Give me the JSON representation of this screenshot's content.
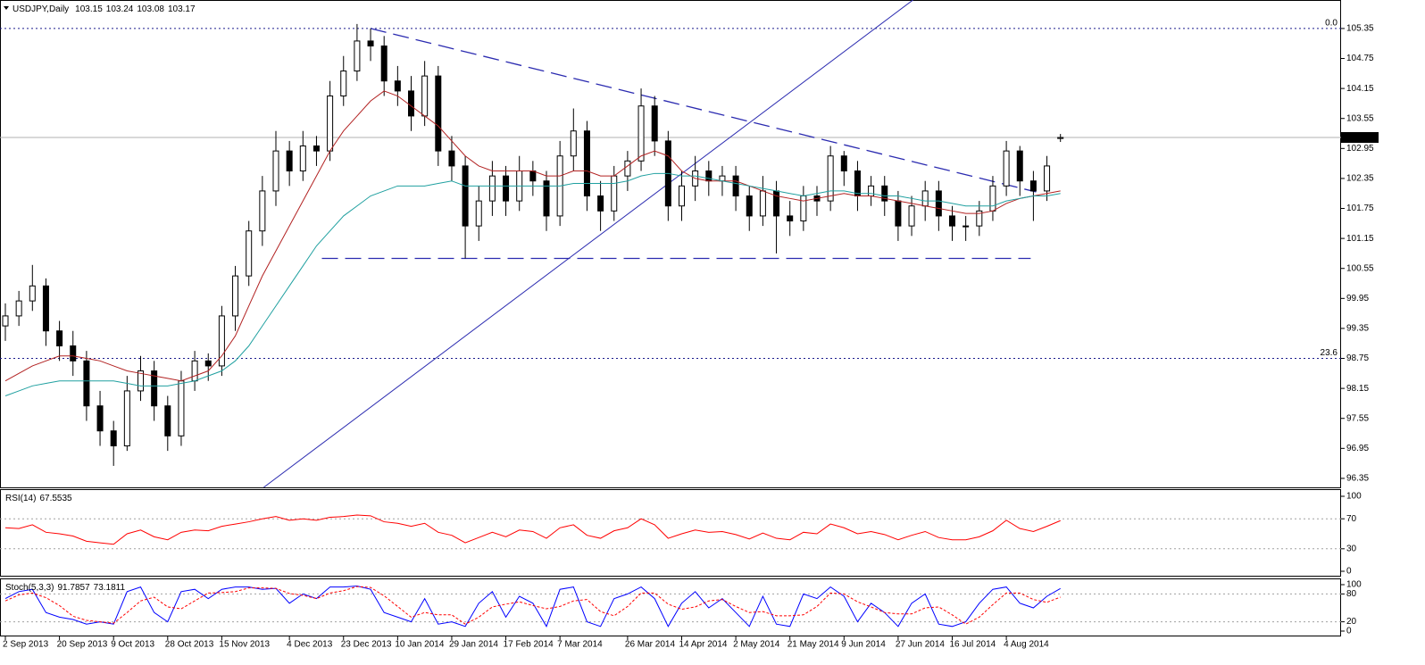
{
  "chart_data": [
    {
      "type": "candlestick",
      "title": "USDJPY,Daily",
      "categories": [
        "2 Sep 2013",
        null,
        null,
        null,
        "20 Sep 2013",
        null,
        null,
        null,
        "9 Oct 2013",
        null,
        null,
        null,
        "28 Oct 2013",
        null,
        null,
        null,
        "15 Nov 2013",
        null,
        null,
        null,
        null,
        "4 Dec 2013",
        null,
        null,
        null,
        "23 Dec 2013",
        null,
        null,
        null,
        "10 Jan 2014",
        null,
        null,
        null,
        "29 Jan 2014",
        null,
        null,
        null,
        "17 Feb 2014",
        null,
        null,
        null,
        "7 Mar 2014",
        null,
        null,
        null,
        null,
        "26 Mar 2014",
        null,
        null,
        null,
        "14 Apr 2014",
        null,
        null,
        null,
        "2 May 2014",
        null,
        null,
        null,
        "21 May 2014",
        null,
        null,
        null,
        "9 Jun 2014",
        null,
        null,
        null,
        "27 Jun 2014",
        null,
        null,
        null,
        "16 Jul 2014",
        null,
        null,
        null,
        "4 Aug 2014",
        null,
        null,
        null,
        null
      ],
      "open": [
        99.4,
        99.6,
        99.9,
        100.2,
        99.3,
        99.0,
        98.7,
        97.8,
        97.3,
        97.0,
        98.1,
        98.5,
        97.8,
        97.2,
        98.3,
        98.7,
        98.6,
        99.6,
        100.4,
        101.3,
        102.1,
        102.9,
        102.5,
        103.0,
        102.9,
        104.0,
        104.5,
        105.1,
        105.0,
        104.3,
        104.1,
        103.6,
        104.4,
        102.9,
        102.6,
        101.4,
        101.9,
        102.4,
        101.9,
        102.5,
        102.3,
        101.6,
        102.8,
        103.3,
        102.0,
        101.7,
        102.4,
        102.7,
        103.8,
        103.1,
        101.8,
        102.2,
        102.5,
        102.3,
        102.4,
        102.0,
        101.6,
        102.1,
        101.6,
        101.5,
        102.0,
        101.9,
        102.8,
        102.5,
        102.0,
        102.2,
        101.9,
        101.4,
        101.8,
        102.1,
        101.6,
        101.4,
        101.4,
        101.7,
        102.2,
        102.9,
        102.3,
        102.1,
        103.15
      ],
      "high": [
        99.85,
        100.1,
        100.62,
        100.35,
        99.5,
        99.3,
        98.9,
        98.1,
        97.5,
        98.4,
        98.8,
        98.7,
        98.0,
        98.5,
        98.9,
        98.85,
        99.8,
        100.6,
        101.5,
        102.4,
        103.3,
        103.1,
        103.3,
        103.2,
        104.3,
        104.8,
        105.44,
        105.35,
        105.2,
        104.6,
        104.4,
        104.7,
        104.6,
        103.2,
        102.8,
        102.2,
        102.7,
        102.6,
        102.8,
        102.7,
        102.5,
        103.1,
        103.75,
        103.5,
        102.3,
        102.6,
        102.9,
        104.15,
        104.0,
        103.3,
        102.5,
        102.8,
        102.7,
        102.6,
        102.6,
        102.2,
        102.4,
        102.3,
        101.9,
        102.2,
        102.2,
        103.0,
        102.9,
        102.7,
        102.4,
        102.4,
        102.1,
        102.0,
        102.3,
        102.3,
        101.8,
        101.6,
        101.9,
        102.4,
        103.1,
        103.0,
        102.5,
        102.8,
        103.24
      ],
      "low": [
        99.1,
        99.4,
        99.7,
        99.0,
        98.7,
        98.4,
        97.5,
        97.0,
        96.6,
        96.9,
        97.9,
        97.5,
        96.9,
        97.0,
        98.1,
        98.3,
        98.4,
        99.3,
        100.2,
        101.0,
        101.8,
        102.2,
        102.3,
        102.6,
        102.7,
        103.8,
        104.3,
        104.7,
        104.0,
        103.8,
        103.3,
        103.4,
        102.6,
        102.3,
        100.75,
        101.1,
        101.6,
        101.6,
        101.7,
        102.0,
        101.3,
        101.4,
        102.5,
        101.7,
        101.3,
        101.5,
        102.1,
        102.5,
        102.8,
        101.5,
        101.5,
        101.9,
        102.0,
        102.0,
        101.7,
        101.3,
        101.4,
        100.85,
        101.2,
        101.3,
        101.6,
        101.7,
        102.2,
        101.7,
        101.8,
        101.6,
        101.1,
        101.2,
        101.5,
        101.3,
        101.1,
        101.1,
        101.2,
        101.5,
        102.0,
        102.0,
        101.5,
        101.9,
        103.08
      ],
      "close": [
        99.6,
        99.9,
        100.2,
        99.3,
        99.0,
        98.7,
        97.8,
        97.3,
        97.0,
        98.1,
        98.5,
        97.8,
        97.2,
        98.3,
        98.7,
        98.6,
        99.6,
        100.4,
        101.3,
        102.1,
        102.9,
        102.5,
        103.0,
        102.9,
        104.0,
        104.5,
        105.1,
        105.0,
        104.3,
        104.1,
        103.6,
        104.4,
        102.9,
        102.6,
        101.4,
        101.9,
        102.4,
        101.9,
        102.5,
        102.3,
        101.6,
        102.8,
        103.3,
        102.0,
        101.7,
        102.4,
        102.7,
        103.8,
        103.1,
        101.8,
        102.2,
        102.5,
        102.3,
        102.4,
        102.0,
        101.6,
        102.1,
        101.6,
        101.5,
        102.0,
        101.9,
        102.8,
        102.5,
        102.0,
        102.2,
        101.9,
        101.4,
        101.8,
        102.1,
        101.6,
        101.4,
        101.4,
        101.7,
        102.2,
        102.9,
        102.3,
        102.1,
        102.6,
        103.17
      ],
      "up_color": "#ffffff",
      "down_color": "#000000",
      "overlays": [
        {
          "color": "#b22222",
          "values": [
            98.3,
            98.45,
            98.6,
            98.7,
            98.8,
            98.8,
            98.75,
            98.7,
            98.6,
            98.5,
            98.45,
            98.4,
            98.35,
            98.3,
            98.4,
            98.5,
            98.8,
            99.2,
            99.8,
            100.4,
            100.9,
            101.4,
            101.9,
            102.4,
            102.9,
            103.3,
            103.6,
            103.9,
            104.1,
            104.0,
            103.8,
            103.6,
            103.4,
            103.1,
            102.8,
            102.6,
            102.5,
            102.5,
            102.5,
            102.5,
            102.4,
            102.4,
            102.5,
            102.5,
            102.4,
            102.4,
            102.6,
            102.8,
            102.9,
            102.8,
            102.5,
            102.35,
            102.3,
            102.3,
            102.3,
            102.2,
            102.1,
            102.0,
            101.95,
            101.9,
            101.95,
            102.0,
            102.05,
            102.0,
            102.0,
            101.95,
            101.9,
            101.85,
            101.8,
            101.75,
            101.7,
            101.65,
            101.65,
            101.7,
            101.85,
            101.95,
            102.0,
            102.05,
            102.1
          ]
        },
        {
          "color": "#20a0a0",
          "values": [
            98.0,
            98.1,
            98.2,
            98.25,
            98.3,
            98.3,
            98.3,
            98.3,
            98.3,
            98.25,
            98.2,
            98.2,
            98.2,
            98.25,
            98.3,
            98.4,
            98.5,
            98.7,
            99.0,
            99.4,
            99.8,
            100.2,
            100.6,
            101.0,
            101.3,
            101.6,
            101.8,
            102.0,
            102.1,
            102.2,
            102.2,
            102.2,
            102.25,
            102.3,
            102.2,
            102.2,
            102.2,
            102.2,
            102.2,
            102.2,
            102.2,
            102.2,
            102.25,
            102.25,
            102.25,
            102.25,
            102.3,
            102.4,
            102.45,
            102.45,
            102.4,
            102.4,
            102.35,
            102.3,
            102.25,
            102.2,
            102.15,
            102.1,
            102.05,
            102.0,
            102.05,
            102.1,
            102.1,
            102.05,
            102.05,
            102.0,
            102.0,
            101.95,
            101.9,
            101.9,
            101.85,
            101.8,
            101.8,
            101.8,
            101.9,
            101.95,
            102.0,
            102.0,
            102.05
          ]
        }
      ],
      "levels": [
        {
          "value": 105.35,
          "label": "0.0"
        },
        {
          "value": 98.75,
          "label": "23.6"
        }
      ],
      "level_color": "#1a1a8c",
      "trendlines": [
        {
          "points": [
            [
              19.1,
              96.17
            ],
            [
              67.1,
              105.92
            ]
          ],
          "color": "#2b2bb0",
          "dashed": false
        },
        {
          "points": [
            [
              27,
              105.35
            ],
            [
              76.2,
              102.08
            ]
          ],
          "color": "#2b2bb0",
          "dashed": true
        },
        {
          "points": [
            [
              23.4,
              100.75
            ],
            [
              75.8,
              100.75
            ]
          ],
          "color": "#2b2bb0",
          "dashed": true
        }
      ],
      "last_line_color": "#b0b0b0",
      "ylim": [
        96.17,
        105.92
      ],
      "yticks": [
        96.35,
        96.95,
        97.55,
        98.15,
        98.75,
        99.35,
        99.95,
        100.55,
        101.15,
        101.75,
        102.35,
        102.95,
        103.55,
        104.15,
        104.75,
        105.35
      ]
    },
    {
      "type": "line",
      "title": "RSI(14)",
      "series": [
        {
          "color": "#ff0000",
          "values": [
            58,
            57,
            62,
            52,
            50,
            47,
            40,
            38,
            36,
            50,
            55,
            46,
            42,
            52,
            55,
            54,
            60,
            63,
            66,
            70,
            73,
            68,
            70,
            68,
            72,
            73,
            75,
            74,
            66,
            64,
            60,
            64,
            52,
            48,
            38,
            45,
            52,
            46,
            55,
            53,
            44,
            58,
            62,
            48,
            44,
            54,
            58,
            70,
            62,
            44,
            50,
            55,
            52,
            53,
            49,
            43,
            51,
            44,
            42,
            52,
            50,
            63,
            58,
            50,
            53,
            49,
            42,
            48,
            53,
            45,
            42,
            42,
            46,
            54,
            68,
            57,
            53,
            60,
            67.5535
          ]
        }
      ],
      "levels": [
        30,
        70
      ],
      "ylim": [
        0,
        100
      ],
      "yticks": [
        0,
        30,
        70,
        100
      ]
    },
    {
      "type": "line",
      "title": "Stoch(5,3,3)",
      "series": [
        {
          "color": "#0000ff",
          "dashed": false,
          "values": [
            70,
            85,
            90,
            40,
            30,
            25,
            15,
            20,
            15,
            85,
            95,
            40,
            20,
            85,
            90,
            70,
            90,
            95,
            95,
            90,
            92,
            60,
            80,
            70,
            95,
            95,
            97,
            90,
            40,
            30,
            20,
            70,
            15,
            20,
            10,
            60,
            85,
            30,
            75,
            60,
            10,
            90,
            95,
            20,
            10,
            70,
            80,
            95,
            70,
            10,
            60,
            85,
            50,
            70,
            40,
            10,
            75,
            15,
            10,
            80,
            70,
            95,
            75,
            20,
            60,
            40,
            10,
            60,
            80,
            15,
            10,
            20,
            60,
            90,
            95,
            60,
            50,
            75,
            91.7857
          ]
        },
        {
          "color": "#ff0000",
          "dashed": true,
          "values": [
            65,
            78,
            82,
            72,
            55,
            32,
            23,
            20,
            17,
            40,
            65,
            73,
            52,
            48,
            65,
            82,
            83,
            85,
            93,
            93,
            92,
            81,
            77,
            70,
            82,
            87,
            96,
            94,
            76,
            53,
            30,
            40,
            35,
            35,
            15,
            30,
            52,
            58,
            63,
            55,
            48,
            53,
            65,
            68,
            42,
            33,
            53,
            82,
            82,
            58,
            47,
            52,
            65,
            68,
            53,
            40,
            42,
            33,
            33,
            35,
            53,
            82,
            80,
            63,
            52,
            40,
            37,
            37,
            50,
            52,
            35,
            15,
            30,
            57,
            82,
            82,
            68,
            62,
            73.1811
          ]
        }
      ],
      "levels": [
        20,
        80
      ],
      "ylim": [
        0,
        100
      ],
      "yticks": [
        0,
        20,
        80,
        100
      ]
    }
  ]
}
